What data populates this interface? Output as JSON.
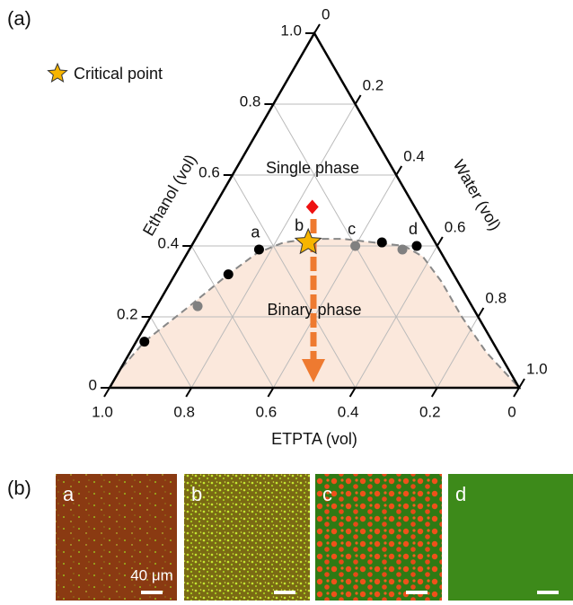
{
  "panel_a_label": "(a)",
  "chart_data": {
    "type": "ternary",
    "axes": {
      "ethanol": "Ethanol (vol)",
      "water": "Water (vol)",
      "etpta": "ETPTA (vol)"
    },
    "ethanol_ticks": [
      0,
      0.2,
      0.4,
      0.6,
      0.8,
      {
        "value": 1,
        "label": "1.0"
      }
    ],
    "water_ticks": [
      0,
      0.2,
      0.4,
      0.6,
      0.8,
      {
        "value": 1,
        "label": "1.0"
      }
    ],
    "etpta_ticks": [
      {
        "value": 1,
        "label": "1.0"
      },
      0.8,
      0.6,
      0.4,
      0.2,
      0
    ],
    "grid": true,
    "regions": [
      "Single phase",
      "Binary phase"
    ],
    "binodal": {
      "color": "#888888",
      "fill": "#fbe8dc",
      "ethanol": [
        0,
        0.05,
        0.13,
        0.23,
        0.32,
        0.38,
        0.41,
        0.42,
        0.42,
        0.41,
        0.4,
        0.37,
        0.3,
        0.2,
        0.1,
        0
      ],
      "water": [
        0,
        0.0,
        0.02,
        0.08,
        0.13,
        0.17,
        0.22,
        0.28,
        0.36,
        0.44,
        0.52,
        0.58,
        0.66,
        0.76,
        0.87,
        1.0
      ]
    },
    "series": [
      {
        "name": "Critical point",
        "color": "#f7b500",
        "marker": "star",
        "ethanol": [
          0.41
        ],
        "water": [
          0.28
        ],
        "labels": [
          "b"
        ]
      },
      {
        "color": "#000000",
        "marker": "circle",
        "ethanol": [
          0.13,
          0.32,
          0.39,
          0.41,
          0.4
        ],
        "water": [
          0.02,
          0.13,
          0.17,
          0.46,
          0.55
        ],
        "labels": [
          null,
          null,
          "a",
          null,
          "d"
        ]
      },
      {
        "color": "#808080",
        "marker": "circle",
        "ethanol": [
          0.23,
          0.4,
          0.39
        ],
        "water": [
          0.1,
          0.4,
          0.52
        ],
        "labels": [
          null,
          "c",
          null
        ]
      },
      {
        "color": "#ee1111",
        "marker": "diamond",
        "ethanol": [
          0.51
        ],
        "water": [
          0.24
        ],
        "labels": [
          null
        ]
      }
    ]
  },
  "panel_b": {
    "label": "(b)",
    "images": [
      {
        "label": "a",
        "scale": "40 μm"
      },
      {
        "label": "b"
      },
      {
        "label": "c"
      },
      {
        "label": "d"
      }
    ]
  }
}
